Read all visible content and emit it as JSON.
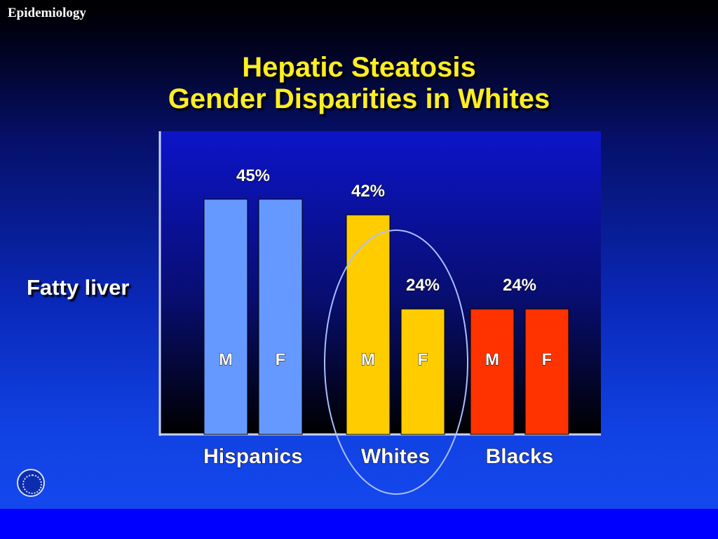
{
  "section_label": "Epidemiology",
  "title_lines": [
    "Hepatic Steatosis",
    "Gender Disparities in Whites"
  ],
  "colors": {
    "title": "#ffee22",
    "hispanics": "#6699ff",
    "whites": "#ffcc00",
    "blacks": "#ff3300",
    "circle": "#a8c0ff"
  },
  "logo": "institution-seal-icon",
  "chart_data": {
    "type": "bar",
    "title": "Hepatic Steatosis Gender Disparities in Whites",
    "ylabel": "Fatty liver",
    "xlabel": "",
    "ylim": [
      0,
      58
    ],
    "grid": false,
    "categories": [
      "Hispanics",
      "Whites",
      "Blacks"
    ],
    "series": [
      {
        "name": "M",
        "values": [
          45,
          42,
          24
        ]
      },
      {
        "name": "F",
        "values": [
          45,
          24,
          24
        ]
      }
    ],
    "bar_colors": [
      "#6699ff",
      "#ffcc00",
      "#ff3300"
    ],
    "value_labels": [
      {
        "category": "Hispanics",
        "text": "45%"
      },
      {
        "category": "Whites",
        "series": "M",
        "text": "42%"
      },
      {
        "category": "Whites",
        "series": "F",
        "text": "24%"
      },
      {
        "category": "Blacks",
        "text": "24%"
      }
    ],
    "annotations": [
      "Whites group circled"
    ]
  }
}
